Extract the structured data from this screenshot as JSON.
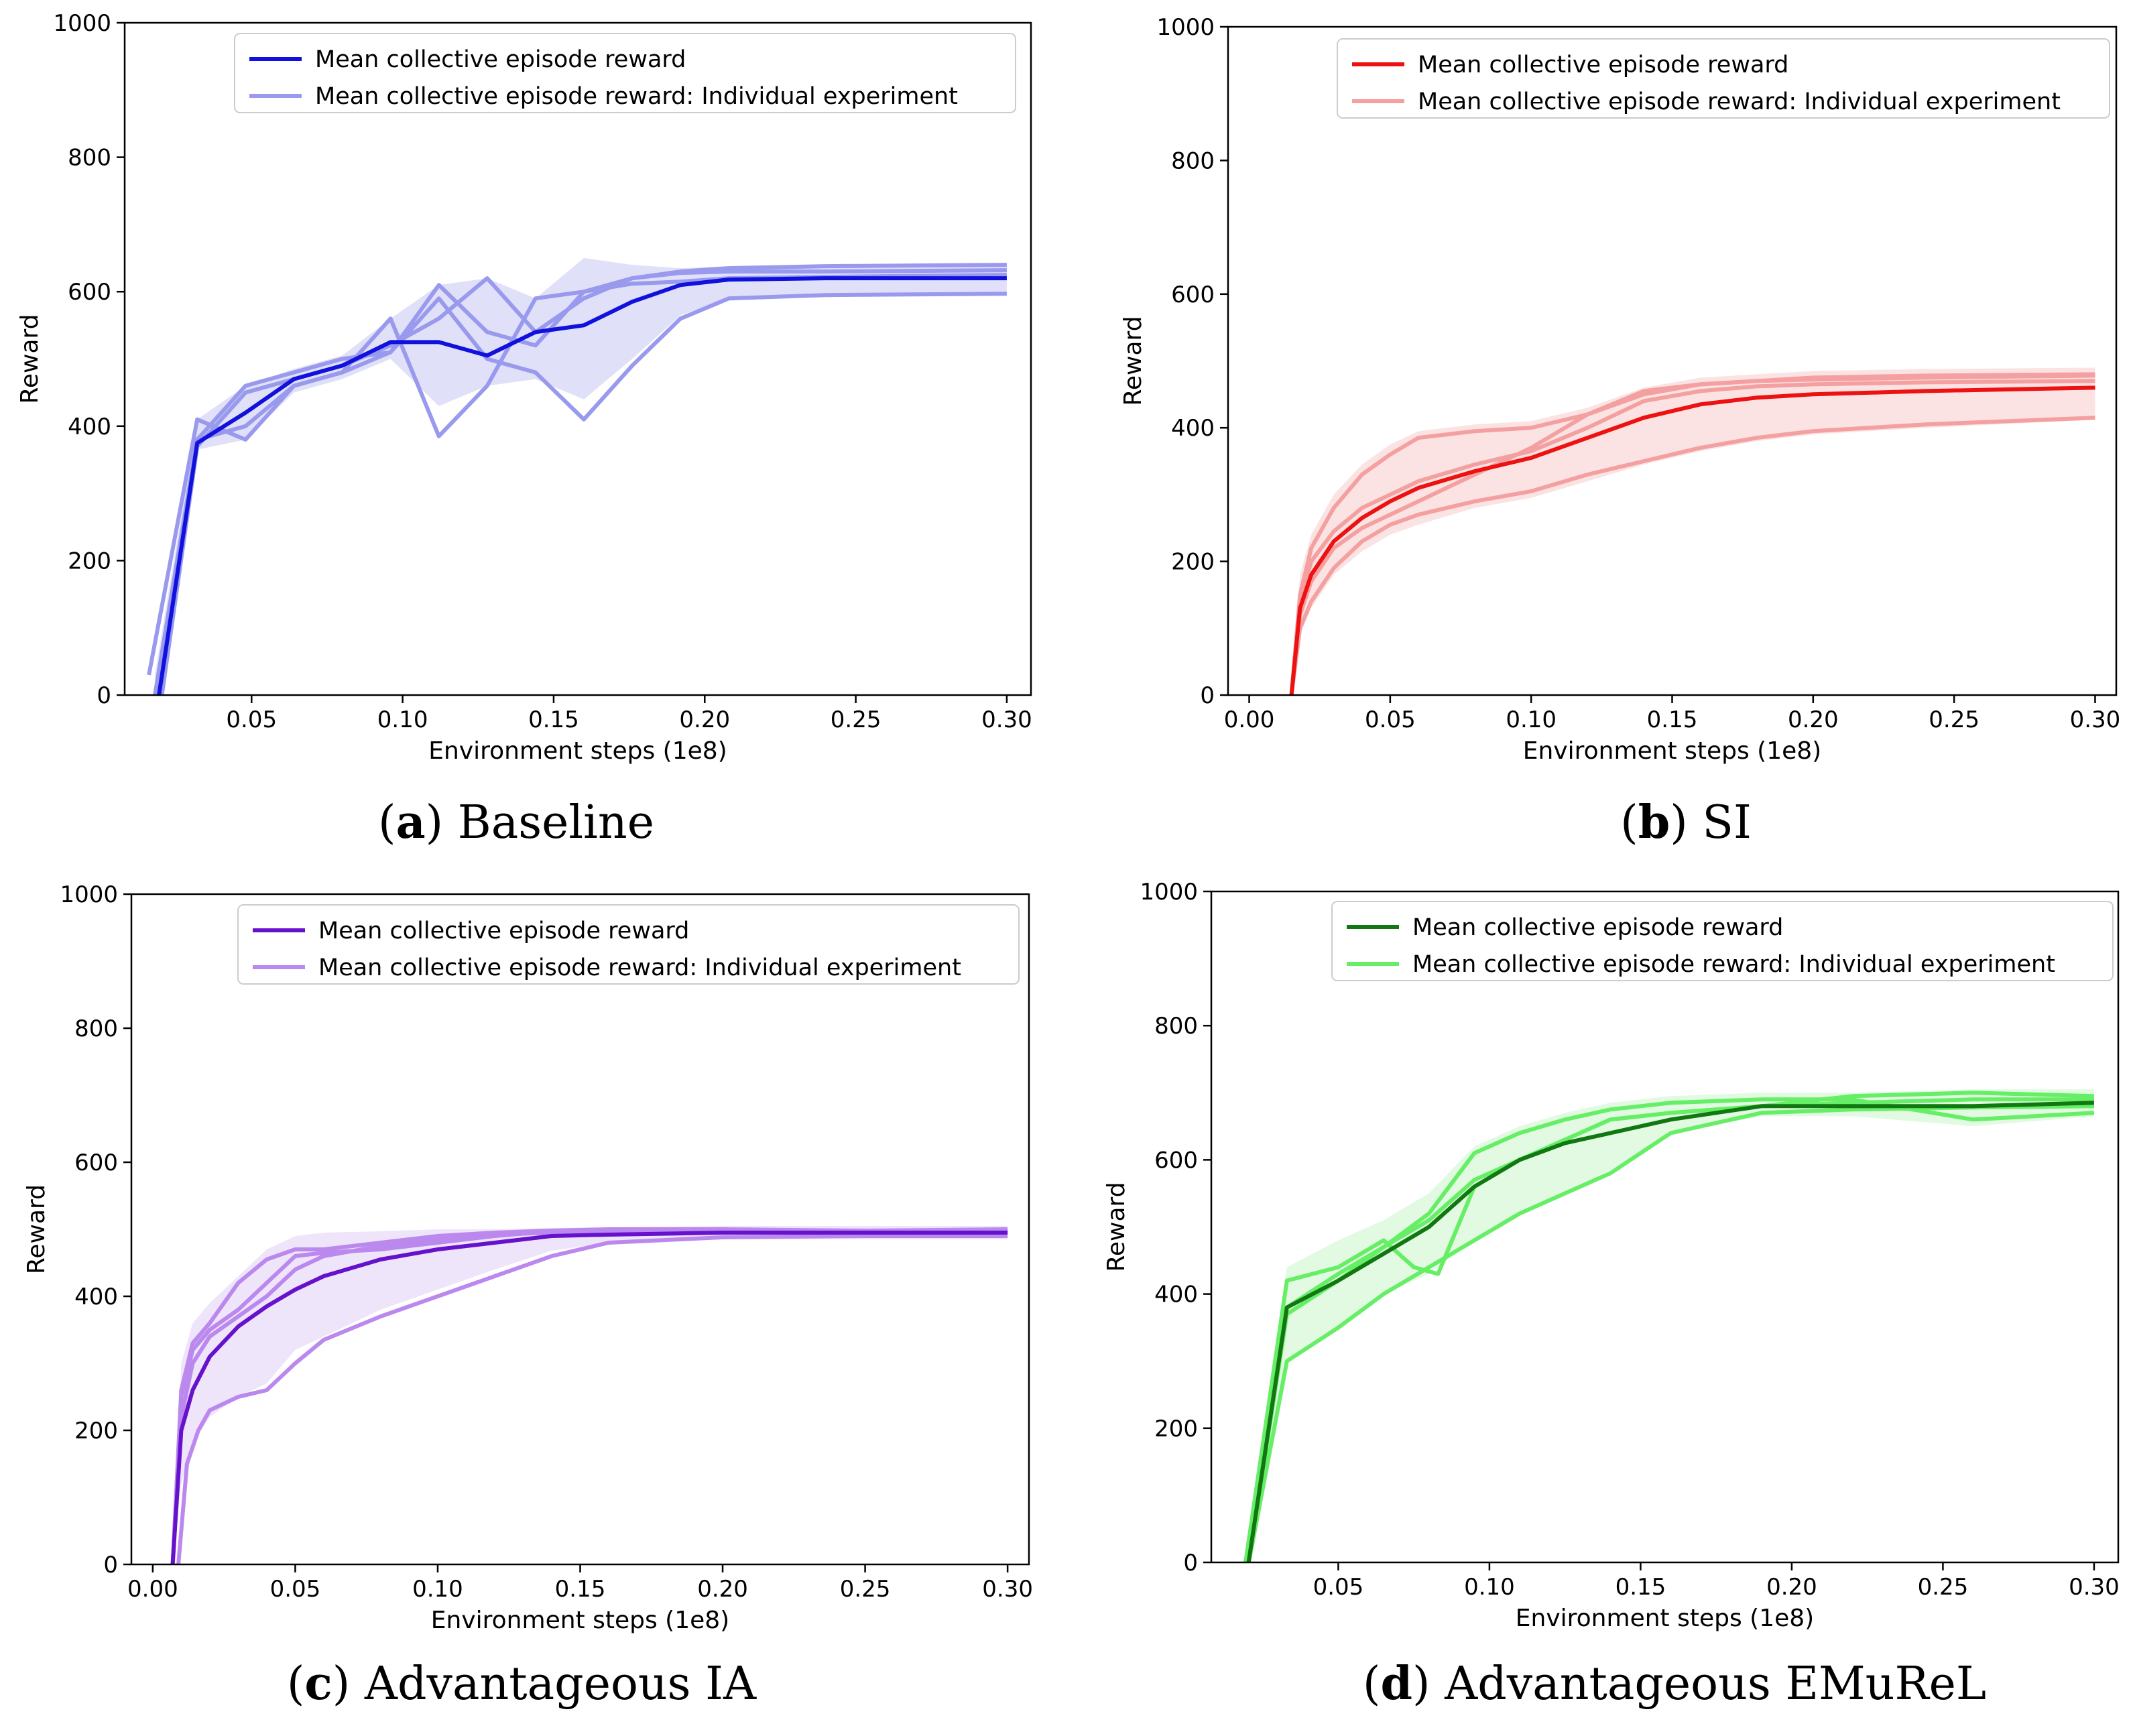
{
  "chart_data": [
    {
      "type": "line",
      "caption_letter": "a",
      "caption_text": "Baseline",
      "xlabel": "Environment steps (1e8)",
      "ylabel": "Reward",
      "xlim": [
        0.008,
        0.308
      ],
      "ylim": [
        0,
        1000
      ],
      "xticks": [
        "0.05",
        "0.10",
        "0.15",
        "0.20",
        "0.25",
        "0.30"
      ],
      "yticks": [
        "0",
        "200",
        "400",
        "600",
        "800",
        "1000"
      ],
      "legend_position": "top-center",
      "grid": false,
      "colors": {
        "mean": "#1111dd",
        "individual": "#9999ee",
        "band": "#c7c7f4"
      },
      "legend": [
        "Mean collective episode reward",
        "Mean collective episode reward: Individual experiment"
      ],
      "mean": {
        "name": "Mean collective episode reward",
        "x": [
          0.019,
          0.032,
          0.048,
          0.064,
          0.08,
          0.096,
          0.112,
          0.128,
          0.144,
          0.16,
          0.176,
          0.192,
          0.208,
          0.24,
          0.3
        ],
        "y": [
          -10,
          375,
          420,
          470,
          490,
          525,
          525,
          505,
          540,
          550,
          585,
          610,
          618,
          620,
          620
        ]
      },
      "individual": [
        {
          "x": [
            0.016,
            0.032,
            0.048,
            0.064,
            0.08,
            0.096,
            0.112,
            0.128,
            0.144,
            0.16,
            0.176,
            0.192,
            0.208,
            0.24,
            0.3
          ],
          "y": [
            30,
            410,
            380,
            460,
            480,
            560,
            385,
            460,
            590,
            600,
            620,
            630,
            635,
            638,
            640
          ]
        },
        {
          "x": [
            0.018,
            0.032,
            0.048,
            0.064,
            0.08,
            0.096,
            0.112,
            0.128,
            0.144,
            0.16,
            0.176,
            0.192,
            0.208,
            0.24,
            0.3
          ],
          "y": [
            0,
            380,
            460,
            480,
            500,
            510,
            590,
            500,
            480,
            410,
            490,
            560,
            590,
            595,
            597
          ]
        },
        {
          "x": [
            0.02,
            0.032,
            0.048,
            0.064,
            0.08,
            0.096,
            0.112,
            0.128,
            0.144,
            0.16,
            0.176,
            0.192,
            0.208,
            0.24,
            0.3
          ],
          "y": [
            -10,
            370,
            450,
            470,
            490,
            520,
            560,
            620,
            540,
            590,
            620,
            628,
            630,
            630,
            632
          ]
        },
        {
          "x": [
            0.019,
            0.032,
            0.048,
            0.064,
            0.08,
            0.096,
            0.112,
            0.128,
            0.144,
            0.16,
            0.176,
            0.192,
            0.208,
            0.24,
            0.3
          ],
          "y": [
            -5,
            380,
            400,
            460,
            480,
            510,
            610,
            540,
            520,
            600,
            612,
            615,
            620,
            622,
            625
          ]
        }
      ],
      "band": {
        "x": [
          0.018,
          0.032,
          0.048,
          0.064,
          0.08,
          0.096,
          0.112,
          0.128,
          0.144,
          0.16,
          0.176,
          0.192,
          0.208,
          0.24,
          0.3
        ],
        "upper": [
          30,
          410,
          460,
          485,
          505,
          560,
          610,
          620,
          590,
          650,
          640,
          635,
          638,
          640,
          642
        ],
        "lower": [
          -10,
          365,
          380,
          450,
          470,
          500,
          430,
          460,
          470,
          440,
          500,
          565,
          590,
          595,
          597
        ]
      }
    },
    {
      "type": "line",
      "caption_letter": "b",
      "caption_text": "SI",
      "xlabel": "Environment steps (1e8)",
      "ylabel": "Reward",
      "xlim": [
        -0.0075,
        0.3075
      ],
      "ylim": [
        0,
        1000
      ],
      "xticks": [
        "0.00",
        "0.05",
        "0.10",
        "0.15",
        "0.20",
        "0.25",
        "0.30"
      ],
      "yticks": [
        "0",
        "200",
        "400",
        "600",
        "800",
        "1000"
      ],
      "legend_position": "top-right",
      "grid": false,
      "colors": {
        "mean": "#ee1111",
        "individual": "#f4a0a0",
        "band": "#f9cccc"
      },
      "legend": [
        "Mean collective episode reward",
        "Mean collective episode reward: Individual experiment"
      ],
      "mean": {
        "name": "Mean collective episode reward",
        "x": [
          0.015,
          0.018,
          0.022,
          0.03,
          0.04,
          0.05,
          0.06,
          0.08,
          0.1,
          0.12,
          0.14,
          0.16,
          0.18,
          0.2,
          0.24,
          0.3
        ],
        "y": [
          0,
          130,
          180,
          230,
          265,
          290,
          310,
          335,
          355,
          385,
          415,
          435,
          445,
          450,
          455,
          460
        ]
      },
      "individual": [
        {
          "x": [
            0.015,
            0.018,
            0.022,
            0.03,
            0.04,
            0.05,
            0.06,
            0.08,
            0.1,
            0.12,
            0.14,
            0.16,
            0.18,
            0.2,
            0.24,
            0.3
          ],
          "y": [
            0,
            150,
            220,
            280,
            330,
            360,
            385,
            395,
            400,
            420,
            450,
            465,
            470,
            475,
            478,
            480
          ]
        },
        {
          "x": [
            0.015,
            0.018,
            0.022,
            0.03,
            0.04,
            0.05,
            0.06,
            0.08,
            0.1,
            0.12,
            0.14,
            0.16,
            0.18,
            0.2,
            0.24,
            0.3
          ],
          "y": [
            0,
            100,
            140,
            190,
            230,
            255,
            270,
            290,
            305,
            330,
            350,
            370,
            385,
            395,
            405,
            415
          ]
        },
        {
          "x": [
            0.015,
            0.018,
            0.022,
            0.03,
            0.04,
            0.05,
            0.06,
            0.08,
            0.1,
            0.12,
            0.14,
            0.16,
            0.18,
            0.2,
            0.24,
            0.3
          ],
          "y": [
            0,
            120,
            170,
            220,
            250,
            270,
            290,
            330,
            370,
            420,
            455,
            465,
            470,
            472,
            475,
            478
          ]
        },
        {
          "x": [
            0.015,
            0.018,
            0.022,
            0.03,
            0.04,
            0.05,
            0.06,
            0.08,
            0.1,
            0.12,
            0.14,
            0.16,
            0.18,
            0.2,
            0.24,
            0.3
          ],
          "y": [
            0,
            140,
            200,
            245,
            280,
            300,
            320,
            345,
            365,
            400,
            440,
            455,
            462,
            465,
            468,
            470
          ]
        }
      ],
      "band": {
        "x": [
          0.015,
          0.018,
          0.022,
          0.03,
          0.04,
          0.05,
          0.06,
          0.08,
          0.1,
          0.12,
          0.14,
          0.16,
          0.18,
          0.2,
          0.24,
          0.3
        ],
        "upper": [
          0,
          180,
          240,
          300,
          345,
          375,
          395,
          405,
          410,
          430,
          460,
          475,
          480,
          485,
          488,
          490
        ],
        "lower": [
          0,
          90,
          130,
          180,
          215,
          240,
          255,
          280,
          295,
          320,
          345,
          365,
          380,
          390,
          400,
          412
        ]
      }
    },
    {
      "type": "line",
      "caption_letter": "c",
      "caption_text": "Advantageous IA",
      "xlabel": "Environment steps (1e8)",
      "ylabel": "Reward",
      "xlim": [
        -0.0075,
        0.3075
      ],
      "ylim": [
        0,
        1000
      ],
      "xticks": [
        "0.00",
        "0.05",
        "0.10",
        "0.15",
        "0.20",
        "0.25",
        "0.30"
      ],
      "yticks": [
        "0",
        "200",
        "400",
        "600",
        "800",
        "1000"
      ],
      "legend_position": "top-right",
      "grid": false,
      "colors": {
        "mean": "#6611cc",
        "individual": "#bb88ee",
        "band": "#e2cff7"
      },
      "legend": [
        "Mean collective episode reward",
        "Mean collective episode reward: Individual experiment"
      ],
      "mean": {
        "name": "Mean collective episode reward",
        "x": [
          0.007,
          0.01,
          0.014,
          0.02,
          0.03,
          0.04,
          0.05,
          0.06,
          0.08,
          0.1,
          0.12,
          0.14,
          0.16,
          0.2,
          0.25,
          0.3
        ],
        "y": [
          0,
          200,
          260,
          310,
          355,
          385,
          410,
          430,
          455,
          470,
          480,
          490,
          492,
          495,
          495,
          495
        ]
      },
      "individual": [
        {
          "x": [
            0.007,
            0.01,
            0.014,
            0.02,
            0.03,
            0.04,
            0.05,
            0.06,
            0.08,
            0.1,
            0.12,
            0.14,
            0.16,
            0.2,
            0.25,
            0.3
          ],
          "y": [
            0,
            260,
            330,
            360,
            420,
            455,
            470,
            470,
            480,
            490,
            495,
            498,
            500,
            500,
            498,
            500
          ]
        },
        {
          "x": [
            0.009,
            0.012,
            0.016,
            0.02,
            0.03,
            0.04,
            0.05,
            0.06,
            0.08,
            0.1,
            0.12,
            0.14,
            0.16,
            0.2,
            0.25,
            0.3
          ],
          "y": [
            0,
            150,
            200,
            230,
            250,
            260,
            300,
            335,
            370,
            400,
            430,
            460,
            480,
            488,
            490,
            490
          ]
        },
        {
          "x": [
            0.007,
            0.01,
            0.014,
            0.02,
            0.03,
            0.04,
            0.05,
            0.06,
            0.08,
            0.1,
            0.12,
            0.14,
            0.16,
            0.2,
            0.25,
            0.3
          ],
          "y": [
            0,
            250,
            320,
            350,
            380,
            420,
            460,
            465,
            470,
            480,
            490,
            497,
            495,
            498,
            497,
            497
          ]
        },
        {
          "x": [
            0.007,
            0.01,
            0.014,
            0.02,
            0.03,
            0.04,
            0.05,
            0.06,
            0.08,
            0.1,
            0.12,
            0.14,
            0.16,
            0.2,
            0.25,
            0.3
          ],
          "y": [
            0,
            220,
            300,
            340,
            370,
            400,
            440,
            460,
            475,
            485,
            492,
            495,
            496,
            496,
            495,
            496
          ]
        }
      ],
      "band": {
        "x": [
          0.007,
          0.01,
          0.014,
          0.02,
          0.03,
          0.04,
          0.05,
          0.06,
          0.08,
          0.1,
          0.12,
          0.14,
          0.16,
          0.2,
          0.25,
          0.3
        ],
        "upper": [
          0,
          300,
          360,
          390,
          430,
          470,
          490,
          495,
          497,
          500,
          500,
          502,
          503,
          505,
          505,
          505
        ],
        "lower": [
          0,
          120,
          180,
          220,
          250,
          270,
          320,
          340,
          380,
          410,
          440,
          468,
          480,
          485,
          485,
          485
        ]
      }
    },
    {
      "type": "line",
      "caption_letter": "d",
      "caption_text": "Advantageous EMuReL",
      "xlabel": "Environment steps (1e8)",
      "ylabel": "Reward",
      "xlim": [
        0.008,
        0.308
      ],
      "ylim": [
        0,
        1000
      ],
      "xticks": [
        "0.05",
        "0.10",
        "0.15",
        "0.20",
        "0.25",
        "0.30"
      ],
      "yticks": [
        "0",
        "200",
        "400",
        "600",
        "800",
        "1000"
      ],
      "legend_position": "top-right",
      "grid": false,
      "colors": {
        "mean": "#117711",
        "individual": "#66ee66",
        "band": "#c8f5c8"
      },
      "legend": [
        "Mean collective episode reward",
        "Mean collective episode reward: Individual experiment"
      ],
      "mean": {
        "name": "Mean collective episode reward",
        "x": [
          0.02,
          0.033,
          0.05,
          0.065,
          0.08,
          0.095,
          0.11,
          0.125,
          0.14,
          0.16,
          0.19,
          0.22,
          0.26,
          0.3
        ],
        "y": [
          -10,
          380,
          420,
          460,
          500,
          560,
          600,
          625,
          640,
          660,
          680,
          680,
          680,
          685
        ]
      },
      "individual": [
        {
          "x": [
            0.019,
            0.033,
            0.05,
            0.065,
            0.075,
            0.083,
            0.095,
            0.11,
            0.125,
            0.14,
            0.16,
            0.19,
            0.22,
            0.26,
            0.3
          ],
          "y": [
            -10,
            420,
            440,
            480,
            440,
            430,
            560,
            600,
            630,
            660,
            670,
            680,
            685,
            690,
            690
          ]
        },
        {
          "x": [
            0.02,
            0.033,
            0.05,
            0.065,
            0.08,
            0.095,
            0.11,
            0.125,
            0.14,
            0.16,
            0.19,
            0.22,
            0.26,
            0.3
          ],
          "y": [
            -10,
            300,
            350,
            400,
            440,
            480,
            520,
            550,
            580,
            640,
            670,
            675,
            678,
            680
          ]
        },
        {
          "x": [
            0.02,
            0.033,
            0.05,
            0.065,
            0.08,
            0.095,
            0.11,
            0.125,
            0.14,
            0.16,
            0.19,
            0.22,
            0.26,
            0.3
          ],
          "y": [
            -10,
            370,
            420,
            470,
            520,
            610,
            640,
            660,
            675,
            685,
            690,
            690,
            660,
            670
          ]
        },
        {
          "x": [
            0.02,
            0.033,
            0.05,
            0.065,
            0.08,
            0.095,
            0.11,
            0.125,
            0.14,
            0.16,
            0.19,
            0.22,
            0.26,
            0.3
          ],
          "y": [
            -10,
            380,
            430,
            470,
            510,
            570,
            600,
            630,
            660,
            670,
            680,
            695,
            700,
            695
          ]
        }
      ],
      "band": {
        "x": [
          0.019,
          0.033,
          0.05,
          0.065,
          0.08,
          0.095,
          0.11,
          0.125,
          0.14,
          0.16,
          0.19,
          0.22,
          0.26,
          0.3
        ],
        "upper": [
          -10,
          440,
          480,
          510,
          550,
          620,
          650,
          670,
          685,
          695,
          700,
          700,
          705,
          705
        ],
        "lower": [
          -10,
          300,
          350,
          400,
          430,
          480,
          520,
          550,
          585,
          640,
          665,
          665,
          650,
          665
        ]
      }
    }
  ]
}
